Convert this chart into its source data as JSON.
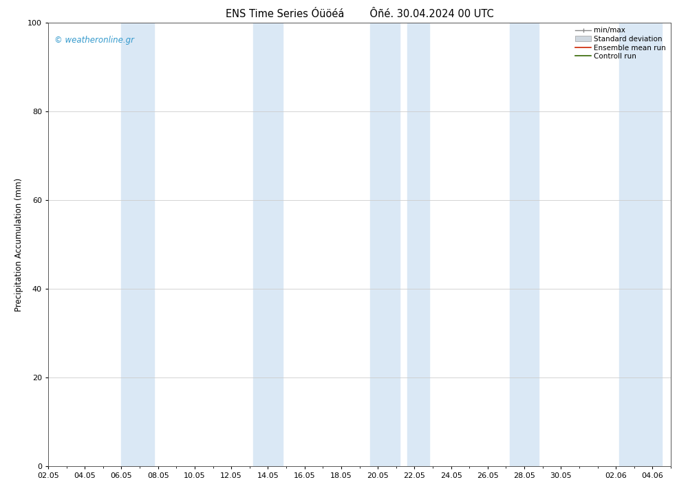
{
  "title": "ENS Time Series Óüöéá        Ôñé. 30.04.2024 00 UTC",
  "ylabel": "Precipitation Accumulation (mm)",
  "ylim": [
    0,
    100
  ],
  "yticks": [
    0,
    20,
    40,
    60,
    80,
    100
  ],
  "xtick_labels": [
    "02.05",
    "04.05",
    "06.05",
    "08.05",
    "10.05",
    "12.05",
    "14.05",
    "16.05",
    "18.05",
    "20.05",
    "22.05",
    "24.05",
    "26.05",
    "28.05",
    "30.05",
    "02.06",
    "04.06"
  ],
  "blue_band_positions": [
    [
      4.0,
      5.8
    ],
    [
      11.2,
      12.8
    ],
    [
      17.6,
      19.2
    ],
    [
      19.6,
      20.8
    ],
    [
      25.2,
      26.8
    ],
    [
      31.2,
      33.5
    ]
  ],
  "blue_band_color": "#dae8f5",
  "bg_color": "#ffffff",
  "plot_bg_color": "#ffffff",
  "watermark": "© weatheronline.gr",
  "watermark_color": "#3399cc",
  "legend_items": [
    "min/max",
    "Standard deviation",
    "Ensemble mean run",
    "Controll run"
  ],
  "legend_colors_line": [
    "#888888",
    "#bbbbbb",
    "#cc2200",
    "#336600"
  ],
  "grid_color": "#cccccc",
  "title_fontsize": 10.5,
  "axis_label_fontsize": 8.5,
  "tick_fontsize": 8,
  "n_xticks": 17,
  "xmin": 0.0,
  "xmax": 34.0
}
